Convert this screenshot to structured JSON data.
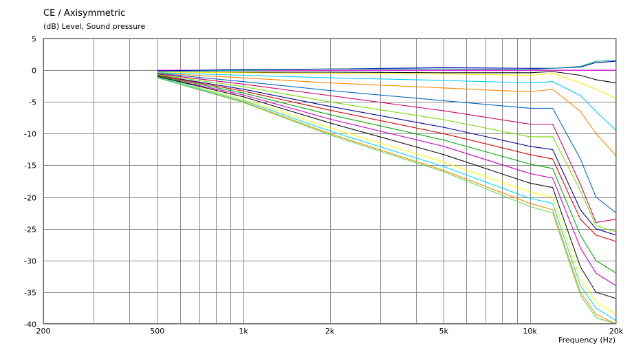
{
  "chart_data": {
    "type": "line",
    "title": "CE / Axisymmetric",
    "ylabel": "(dB)  Level, Sound pressure",
    "xlabel": "Frequency  (Hz)",
    "x_scale": "log",
    "xlim": [
      200,
      20000
    ],
    "ylim": [
      -40,
      5
    ],
    "grid": true,
    "y_ticks": [
      5,
      0,
      -5,
      -10,
      -15,
      -20,
      -25,
      -30,
      -35,
      -40
    ],
    "x_tick_labels": [
      {
        "value": 200,
        "label": "200"
      },
      {
        "value": 500,
        "label": "500"
      },
      {
        "value": 1000,
        "label": "1k"
      },
      {
        "value": 2000,
        "label": "2k"
      },
      {
        "value": 5000,
        "label": "5k"
      },
      {
        "value": 10000,
        "label": "10k"
      },
      {
        "value": 20000,
        "label": "20k"
      }
    ],
    "x": [
      500,
      1000,
      2000,
      5000,
      10000,
      12000,
      15000,
      17000,
      20000
    ],
    "series": [
      {
        "color": "#ff00ff",
        "values": [
          0,
          0,
          0,
          0,
          0,
          0,
          0,
          0,
          0
        ]
      },
      {
        "color": "#0000aa",
        "values": [
          -0.1,
          0.1,
          0.2,
          0.4,
          0.3,
          0.3,
          0.5,
          1.2,
          1.4
        ]
      },
      {
        "color": "#00aa88",
        "values": [
          -0.2,
          0,
          0.2,
          0.2,
          0.1,
          0.3,
          0.6,
          1.4,
          1.6
        ]
      },
      {
        "color": "#000000",
        "values": [
          -0.3,
          -0.3,
          -0.3,
          -0.4,
          -0.4,
          -0.2,
          -0.8,
          -1.5,
          -2
        ]
      },
      {
        "color": "#ffee00",
        "values": [
          -0.3,
          -0.4,
          -0.5,
          -0.6,
          -0.8,
          -0.5,
          -2,
          -3,
          -4.5
        ]
      },
      {
        "color": "#00ccff",
        "values": [
          -0.4,
          -0.8,
          -1.2,
          -1.6,
          -2,
          -1.8,
          -4,
          -6.5,
          -9.5
        ]
      },
      {
        "color": "#ff8800",
        "values": [
          -0.5,
          -1.2,
          -2,
          -2.8,
          -3.4,
          -3,
          -6.5,
          -10,
          -13.5
        ]
      },
      {
        "color": "#0066cc",
        "values": [
          -0.5,
          -1.8,
          -3.2,
          -4.8,
          -6,
          -6,
          -14,
          -20,
          -22.5
        ]
      },
      {
        "color": "#cc0066",
        "values": [
          -0.6,
          -2.2,
          -4,
          -6.4,
          -8.5,
          -8.5,
          -18,
          -24,
          -23.5
        ]
      },
      {
        "color": "#77dd00",
        "values": [
          -0.7,
          -2.6,
          -5,
          -7.8,
          -10.5,
          -10.5,
          -19,
          -24.5,
          -25.5
        ]
      },
      {
        "color": "#000099",
        "values": [
          -0.8,
          -3,
          -5.7,
          -9,
          -12,
          -12.5,
          -22,
          -25,
          -26
        ]
      },
      {
        "color": "#dd0000",
        "values": [
          -0.8,
          -3.3,
          -6.3,
          -10,
          -13.3,
          -14,
          -23.5,
          -26,
          -27
        ]
      },
      {
        "color": "#00aa00",
        "values": [
          -0.9,
          -3.6,
          -7,
          -11,
          -14.8,
          -15.5,
          -26,
          -30,
          -32
        ]
      },
      {
        "color": "#cc00cc",
        "values": [
          -1,
          -3.9,
          -7.7,
          -12,
          -16.3,
          -17,
          -28,
          -32,
          -34
        ]
      },
      {
        "color": "#111111",
        "values": [
          -1,
          -4.2,
          -8.3,
          -13.3,
          -17.8,
          -18.5,
          -31,
          -35,
          -36
        ]
      },
      {
        "color": "#ffff00",
        "values": [
          -1.1,
          -4.6,
          -9.1,
          -14.5,
          -19.2,
          -20,
          -33,
          -36.5,
          -38.5
        ]
      },
      {
        "color": "#00ddff",
        "values": [
          -1.1,
          -4.8,
          -9.6,
          -15.2,
          -20.2,
          -21,
          -34,
          -37.5,
          -39.5
        ]
      },
      {
        "color": "#ff8800",
        "values": [
          -1.2,
          -5,
          -10,
          -15.8,
          -21,
          -22,
          -35,
          -38.5,
          -40
        ]
      },
      {
        "color": "#55dd55",
        "values": [
          -1.2,
          -5.1,
          -10.2,
          -16,
          -21.5,
          -22.5,
          -35.5,
          -39,
          -40
        ]
      }
    ]
  }
}
